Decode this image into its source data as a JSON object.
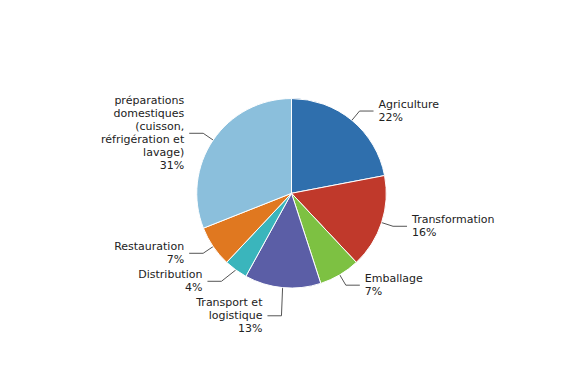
{
  "chart_data": {
    "type": "pie",
    "categories": [
      "Agriculture",
      "Transformation",
      "Emballage",
      "Transport et\nlogistique",
      "Distribution",
      "Restauration",
      "préparations\ndomestiques\n(cuisson,\nréfrigération et\nlavage)"
    ],
    "values": [
      22,
      16,
      7,
      13,
      4,
      7,
      31
    ],
    "value_labels": [
      "22%",
      "16%",
      "7%",
      "13%",
      "4%",
      "7%",
      "31%"
    ],
    "colors": [
      "#2f6fad",
      "#c0392b",
      "#7dc142",
      "#5b5ea6",
      "#3ab5bc",
      "#e07820",
      "#8bbfdc"
    ],
    "data_labels": true
  }
}
